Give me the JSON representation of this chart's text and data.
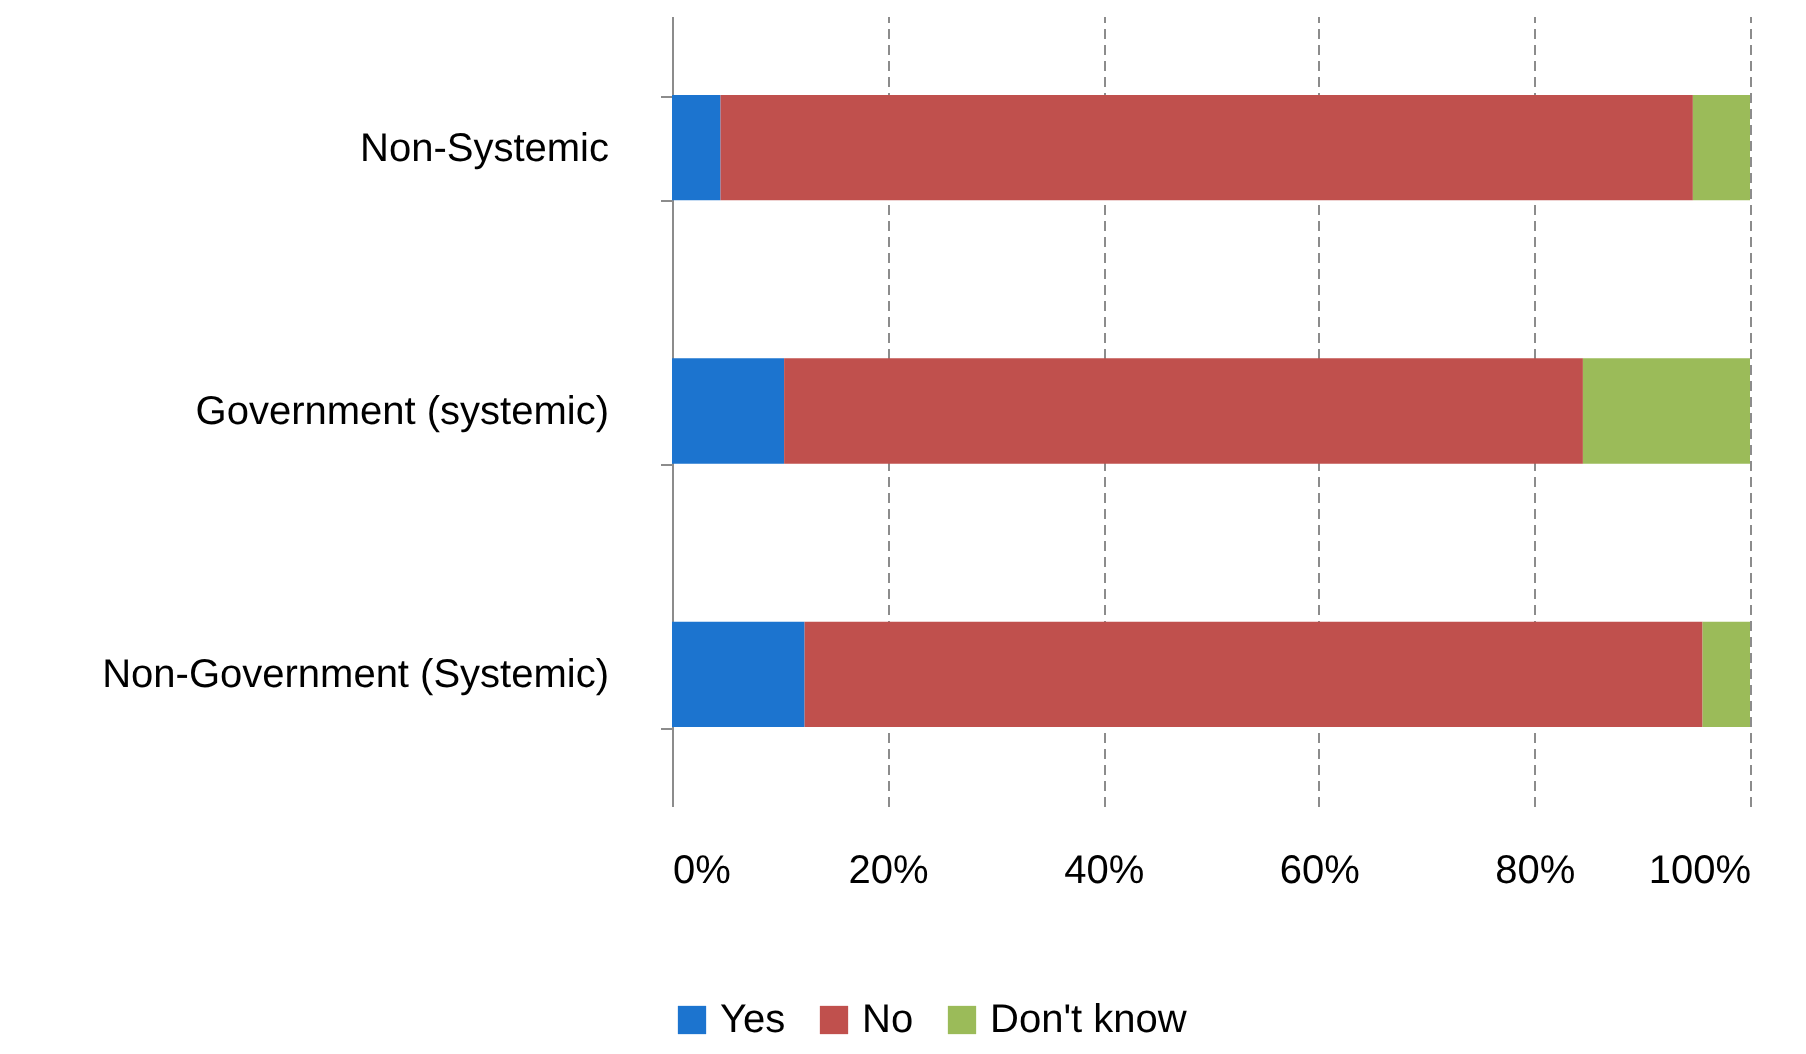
{
  "chart_data": {
    "type": "bar",
    "orientation": "horizontal",
    "stacked": true,
    "categories": [
      "Non-Systemic",
      "Government (systemic)",
      "Non-Government (Systemic)"
    ],
    "series": [
      {
        "name": "Yes",
        "color": "#1c74cf",
        "values": [
          4.5,
          10.4,
          12.3
        ]
      },
      {
        "name": "No",
        "color": "#c0504d",
        "values": [
          90.2,
          74.1,
          83.3
        ]
      },
      {
        "name": "Don't know",
        "color": "#9bbb59",
        "values": [
          5.3,
          15.5,
          4.4
        ]
      }
    ],
    "xlim": [
      0,
      100
    ],
    "xticks": [
      {
        "value": 0,
        "label": "0%"
      },
      {
        "value": 20,
        "label": "20%"
      },
      {
        "value": 40,
        "label": "40%"
      },
      {
        "value": 60,
        "label": "60%"
      },
      {
        "value": 80,
        "label": "80%"
      },
      {
        "value": 100,
        "label": "100%"
      }
    ],
    "grid": "x",
    "legend": "bottom"
  }
}
